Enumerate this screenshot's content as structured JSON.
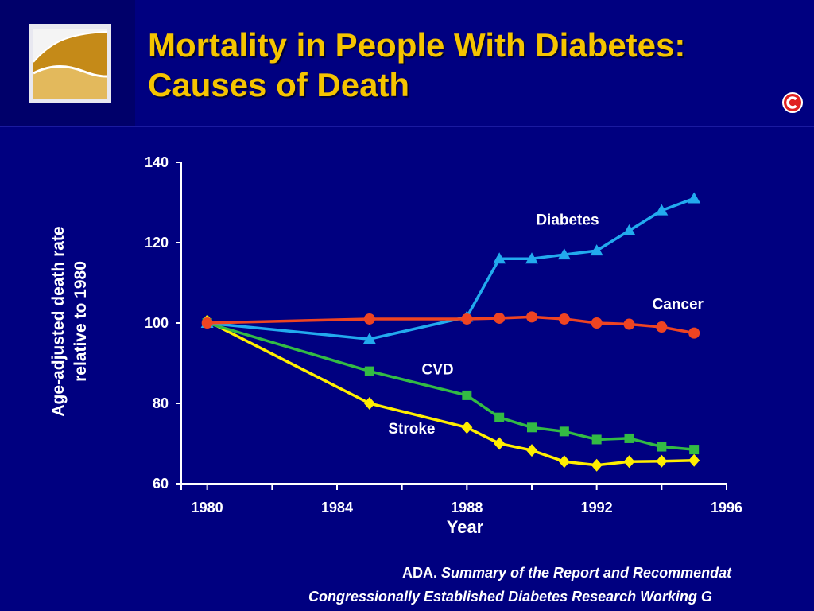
{
  "slide": {
    "title_line1": "Mortality in People With Diabetes:",
    "title_line2": "Causes of Death",
    "source_prefix": "ADA.",
    "source_italic1": "Summary of the Report and Recommendat",
    "source_line2": "Congressionally Established Diabetes Research Working G"
  },
  "chart_data": {
    "type": "line",
    "title": "",
    "xlabel": "Year",
    "ylabel_line1": "Age-adjusted death rate",
    "ylabel_line2": "relative to 1980",
    "xlim": [
      1979.2,
      1996
    ],
    "ylim": [
      60,
      140
    ],
    "xticks": [
      1980,
      1984,
      1988,
      1992,
      1996
    ],
    "yticks": [
      60,
      80,
      100,
      120,
      140
    ],
    "grid": false,
    "series": [
      {
        "name": "Diabetes",
        "color": "#22aaee",
        "marker": "triangle",
        "x": [
          1980,
          1985,
          1988,
          1989,
          1990,
          1991,
          1992,
          1993,
          1994,
          1995
        ],
        "y": [
          100,
          96,
          101.5,
          116,
          116,
          117,
          118,
          123,
          128,
          131
        ]
      },
      {
        "name": "Cancer",
        "color": "#ee4422",
        "marker": "circle",
        "x": [
          1980,
          1985,
          1988,
          1989,
          1990,
          1991,
          1992,
          1993,
          1994,
          1995
        ],
        "y": [
          100,
          101,
          101,
          101.2,
          101.5,
          101,
          100,
          99.7,
          99,
          97.5
        ]
      },
      {
        "name": "CVD",
        "color": "#33bb44",
        "marker": "square",
        "x": [
          1980,
          1985,
          1988,
          1989,
          1990,
          1991,
          1992,
          1993,
          1994,
          1995
        ],
        "y": [
          100,
          88,
          82,
          76.5,
          74,
          73,
          71,
          71.3,
          69.2,
          68.5
        ]
      },
      {
        "name": "Stroke",
        "color": "#ffee00",
        "marker": "diamond",
        "x": [
          1980,
          1985,
          1988,
          1989,
          1990,
          1991,
          1992,
          1993,
          1994,
          1995
        ],
        "y": [
          100.5,
          80,
          74,
          70,
          68.3,
          65.5,
          64.6,
          65.5,
          65.6,
          65.8
        ]
      }
    ],
    "annotations": [
      {
        "text": "Diabetes",
        "x": 1991.1,
        "y": 124.5
      },
      {
        "text": "Cancer",
        "x": 1994.5,
        "y": 103.5
      },
      {
        "text": "CVD",
        "x": 1987.1,
        "y": 87.2
      },
      {
        "text": "Stroke",
        "x": 1986.3,
        "y": 72.5
      }
    ]
  }
}
